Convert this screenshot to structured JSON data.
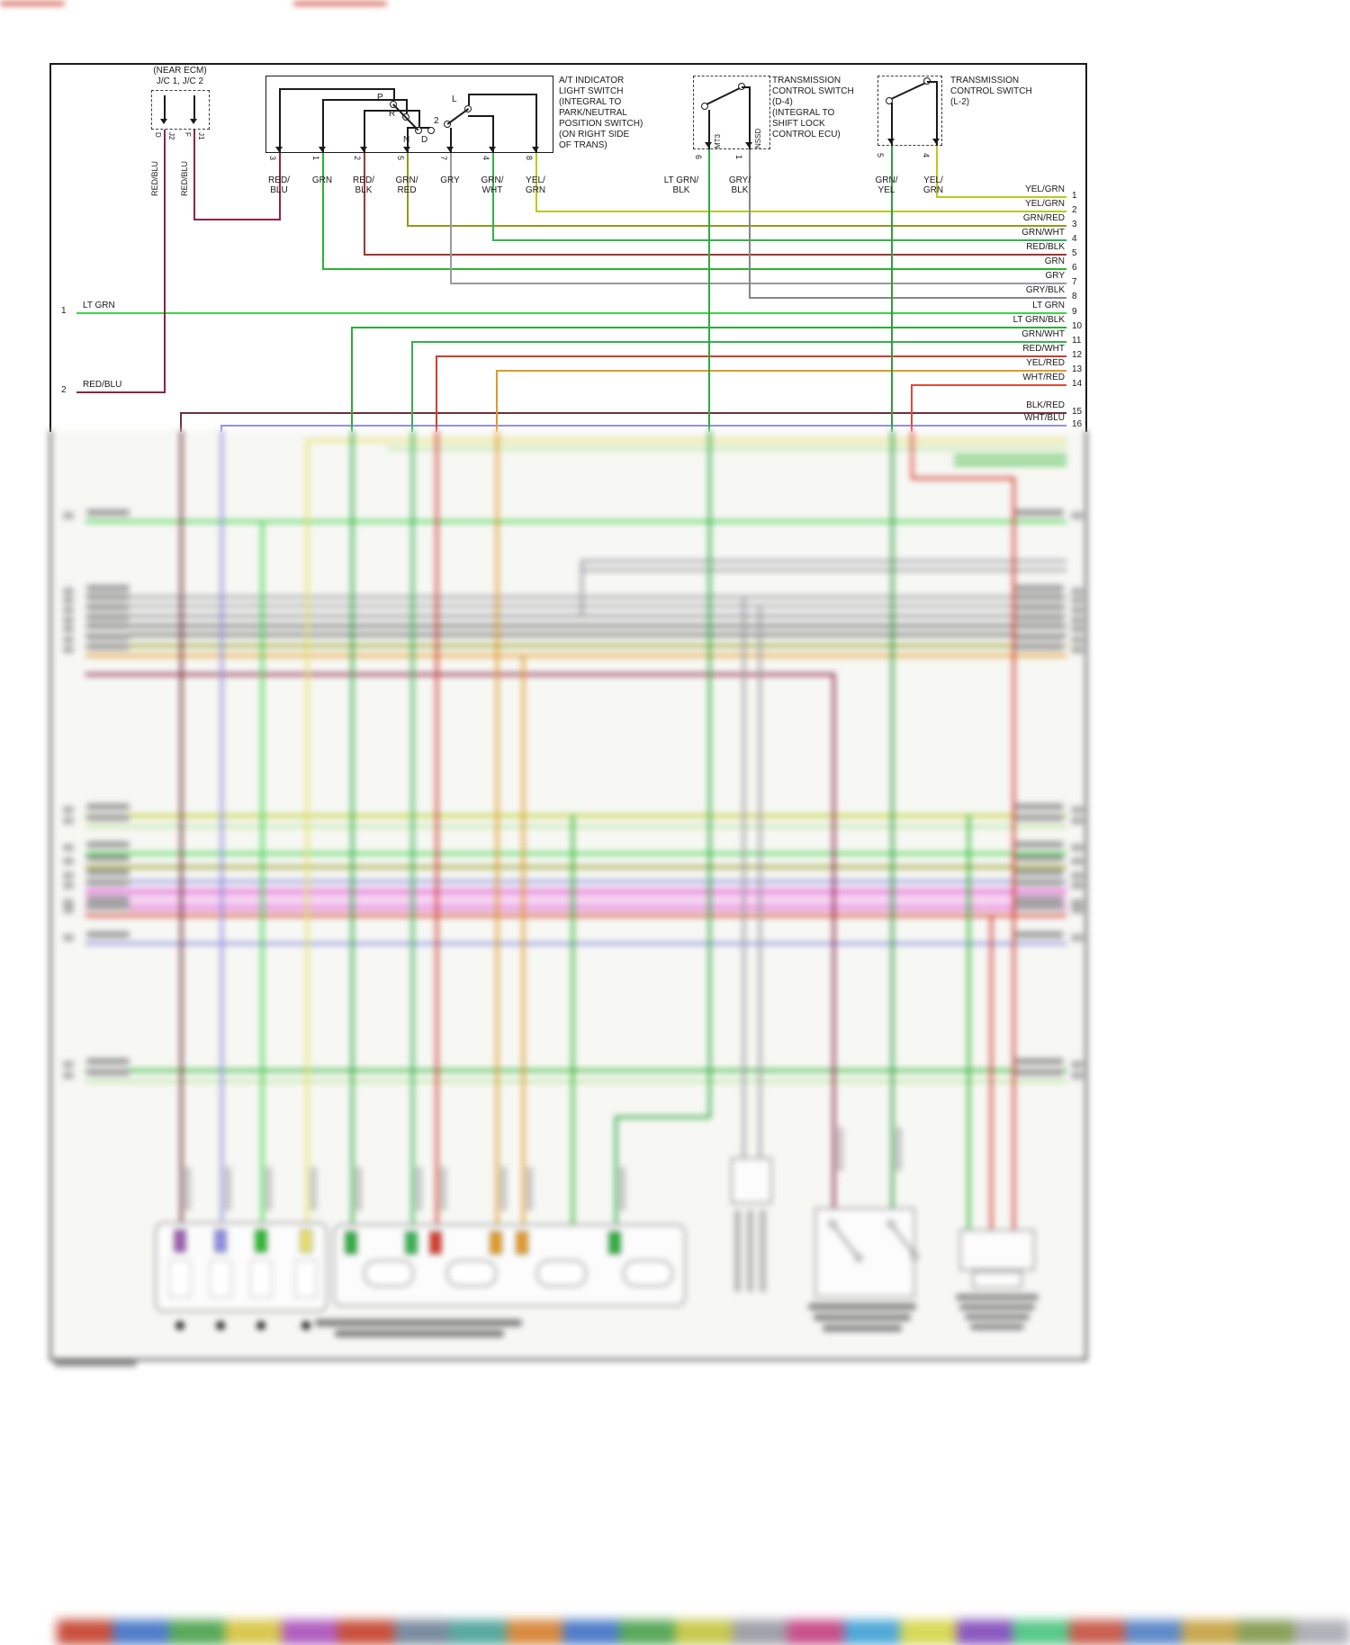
{
  "colors": {
    "border": "#1a1a1a",
    "red_blu": "#8e2344",
    "blk_red": "#70303a",
    "grn": "#2db52d",
    "lt_grn": "#3fd24a",
    "lt_grn_blk": "#2faa3f",
    "grn_wht": "#35b04f",
    "grn_red": "#8f9a1f",
    "grn_yel": "#2f9e3f",
    "yel_grn": "#b5cc1e",
    "red_blk": "#a3342e",
    "red_wht": "#d23b2f",
    "wht_red": "#e04a3a",
    "yel_red": "#e09a28",
    "gry": "#9a9aa0",
    "gry_blk": "#85858c",
    "wht_blu": "#8c8ce0",
    "yellow": "#e6e06a",
    "pale_grn": "#b9e49c",
    "pink_light": "#f6bdf0",
    "pink": "#dd63d2",
    "red": "#d23b2f",
    "dark": "#555555",
    "purple": "#9b5fb0"
  },
  "jc": {
    "title1": "(NEAR ECM)",
    "title2": "J/C 1, J/C 2",
    "wire_label": "RED/BLU",
    "pins": [
      {
        "a": "D",
        "b": "J2"
      },
      {
        "a": "F",
        "b": "J1"
      }
    ]
  },
  "at_switch": {
    "title": [
      "A/T INDICATOR",
      "LIGHT SWITCH",
      "(INTEGRAL TO",
      "PARK/NEUTRAL",
      "POSITION SWITCH)",
      "(ON RIGHT SIDE",
      "OF TRANS)"
    ],
    "positions": [
      "P",
      "R",
      "N",
      "D",
      "2",
      "L"
    ],
    "pins": [
      {
        "num": "3",
        "l1": "RED/",
        "l2": "BLU"
      },
      {
        "num": "1",
        "l1": "GRN",
        "l2": ""
      },
      {
        "num": "2",
        "l1": "RED/",
        "l2": "BLK"
      },
      {
        "num": "5",
        "l1": "GRN/",
        "l2": "RED"
      },
      {
        "num": "7",
        "l1": "GRY",
        "l2": ""
      },
      {
        "num": "4",
        "l1": "GRN/",
        "l2": "WHT"
      },
      {
        "num": "8",
        "l1": "YEL/",
        "l2": "GRN"
      }
    ]
  },
  "d4_switch": {
    "title": [
      "TRANSMISSION",
      "CONTROL SWITCH",
      "(D-4)",
      "(INTEGRAL TO",
      "SHIFT LOCK",
      "CONTROL ECU)"
    ],
    "internal": [
      "MT3",
      "NSSD"
    ],
    "pins": [
      {
        "num": "6",
        "l1": "LT GRN/",
        "l2": "BLK"
      },
      {
        "num": "1",
        "l1": "GRY/",
        "l2": "BLK"
      }
    ]
  },
  "l2_switch": {
    "title": [
      "TRANSMISSION",
      "CONTROL SWITCH",
      "(L-2)"
    ],
    "pins": [
      {
        "num": "5",
        "l1": "GRN/",
        "l2": "YEL"
      },
      {
        "num": "4",
        "l1": "YEL/",
        "l2": "GRN"
      }
    ]
  },
  "left_rows": [
    {
      "num": "1",
      "label": "LT GRN",
      "c": "lt_grn"
    },
    {
      "num": "2",
      "label": "RED/BLU",
      "c": "red_blu"
    }
  ],
  "right_rows": [
    {
      "num": "1",
      "label": "YEL/GRN",
      "c": "yel_grn"
    },
    {
      "num": "2",
      "label": "YEL/GRN",
      "c": "yel_grn"
    },
    {
      "num": "3",
      "label": "GRN/RED",
      "c": "grn_red"
    },
    {
      "num": "4",
      "label": "GRN/WHT",
      "c": "grn_wht"
    },
    {
      "num": "5",
      "label": "RED/BLK",
      "c": "red_blk"
    },
    {
      "num": "6",
      "label": "GRN",
      "c": "grn"
    },
    {
      "num": "7",
      "label": "GRY",
      "c": "gry"
    },
    {
      "num": "8",
      "label": "GRY/BLK",
      "c": "gry_blk"
    },
    {
      "num": "9",
      "label": "LT GRN",
      "c": "lt_grn"
    },
    {
      "num": "10",
      "label": "LT GRN/BLK",
      "c": "lt_grn_blk"
    },
    {
      "num": "11",
      "label": "GRN/WHT",
      "c": "grn_wht"
    },
    {
      "num": "12",
      "label": "RED/WHT",
      "c": "red_wht"
    },
    {
      "num": "13",
      "label": "YEL/RED",
      "c": "yel_red"
    },
    {
      "num": "14",
      "label": "WHT/RED",
      "c": "wht_red"
    },
    {
      "num": "15",
      "label": "BLK/RED",
      "c": "blk_red"
    },
    {
      "num": "16",
      "label": "WHT/BLU",
      "c": "wht_blu"
    }
  ],
  "bottom_strip": [
    "#ffffff",
    "#c94f3d",
    "#4f7dc9",
    "#58a85a",
    "#d8c84f",
    "#b05fc0",
    "#c94f3d",
    "#7a8ca0",
    "#58a8a0",
    "#d88a3f",
    "#4f7dc9",
    "#58a85a",
    "#c9c94f",
    "#a0a0a8",
    "#c94f8a",
    "#4fa8d8",
    "#d8d858",
    "#8a58c0",
    "#58c98a",
    "#c95f4f",
    "#5f8ac9",
    "#c9a84f",
    "#8aa058",
    "#b0b0b8"
  ]
}
